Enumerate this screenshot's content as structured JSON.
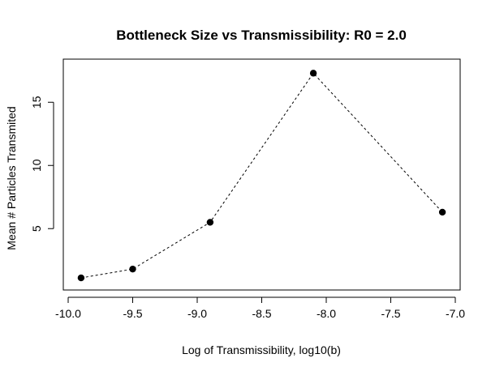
{
  "chart_data": {
    "type": "line",
    "title": "Bottleneck Size vs Transmissibility: R0 = 2.0",
    "xlabel": "Log of Transmissibility, log10(b)",
    "ylabel": "Mean # Particles Transmited",
    "x": [
      -9.9,
      -9.5,
      -8.9,
      -8.1,
      -7.1
    ],
    "series": [
      {
        "values": [
          1.1,
          1.8,
          5.5,
          17.3,
          6.3
        ]
      }
    ],
    "xlim": [
      -10.0,
      -7.0
    ],
    "ylim": [
      0.4,
      17.9
    ],
    "xticks": [
      -10.0,
      -9.5,
      -9.0,
      -8.5,
      -8.0,
      -7.5,
      -7.0
    ],
    "xtick_labels": [
      "-10.0",
      "-9.5",
      "-9.0",
      "-8.5",
      "-8.0",
      "-7.5",
      "-7.0"
    ],
    "yticks": [
      5,
      10,
      15
    ],
    "ytick_labels": [
      "5",
      "10",
      "15"
    ],
    "line_style": "dashed",
    "marker": "filled-circle",
    "grid": false,
    "legend": "none"
  }
}
